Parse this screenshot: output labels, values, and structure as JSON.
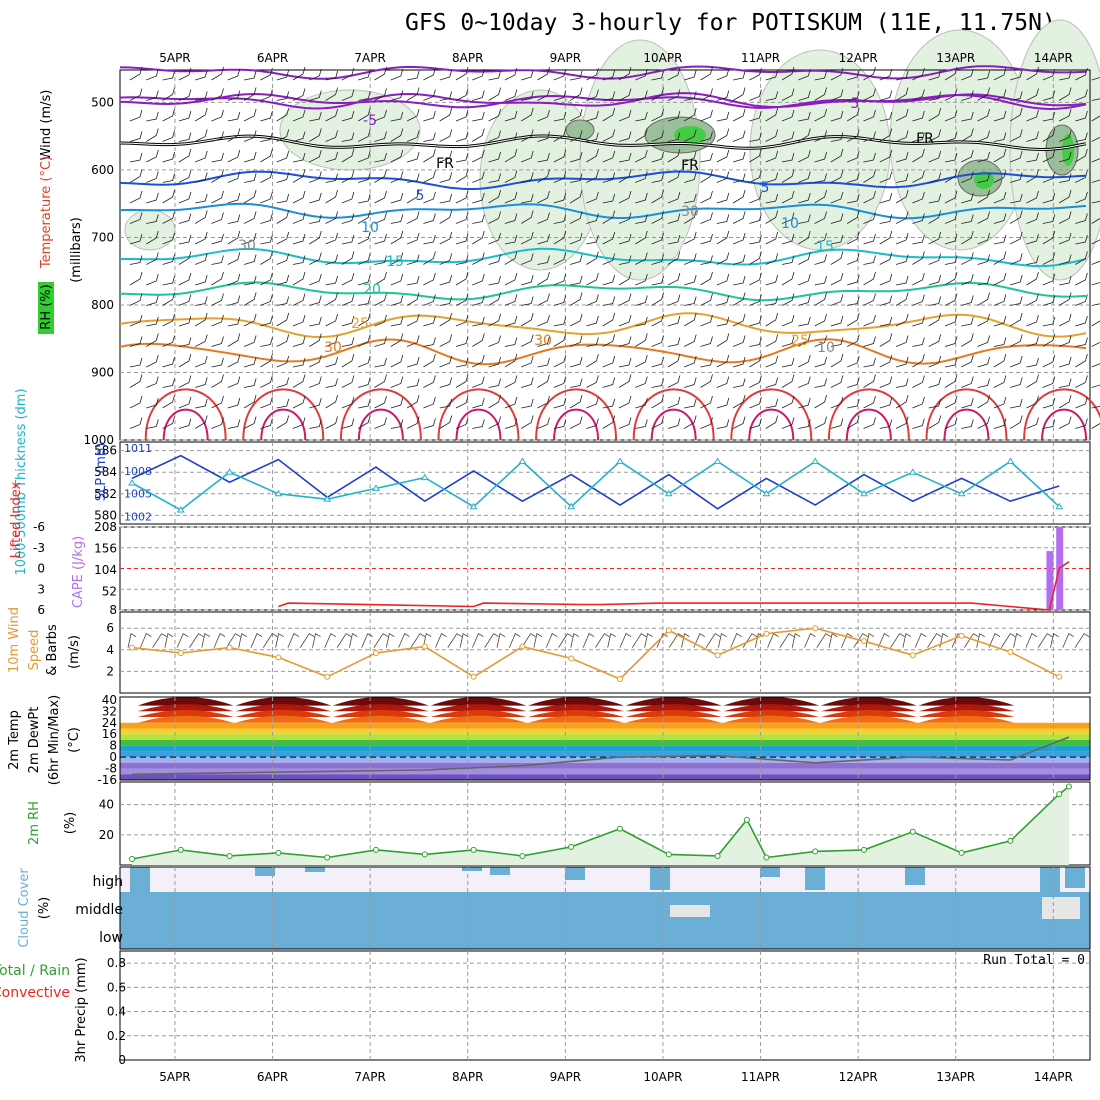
{
  "title": "GFS 0~10day 3-hourly for POTISKUM (11E, 11.75N)",
  "days": [
    "5APR",
    "6APR",
    "7APR",
    "8APR",
    "9APR",
    "10APR",
    "11APR",
    "12APR",
    "13APR",
    "14APR"
  ],
  "colors": {
    "grid": "#9a9a9a",
    "slp": "#1c3fcc",
    "thick": "#22b3c8",
    "cape": "#b36ef0",
    "li": "#ee2222",
    "wind": "#e49a30",
    "rh": "#2fa02f",
    "cloud": "#6baed6",
    "precip_green": "#2fa02f"
  },
  "panels": {
    "upper": {
      "labels": {
        "wind": "Wind (m/s)",
        "temp": "Temperature (°C)",
        "rh": "RH (%)",
        "mb": "(millibars)"
      },
      "yticks": [
        500,
        600,
        700,
        800,
        900,
        1000
      ],
      "contour_labels": {
        "purple": "-5",
        "purple2": "5",
        "fr": "FR",
        "blue": "5",
        "c10": "10",
        "c15": "15",
        "c20": "20",
        "c25": "25",
        "c30": "30",
        "rh30": "30",
        "rh10": "10"
      }
    },
    "slp": {
      "label_thick": "1000-500mb Thickness (dm)",
      "label_slp": "SLP (mb)",
      "left_ticks": [
        "586",
        "584",
        "582",
        "580"
      ],
      "right_ticks": [
        "1011",
        "1008",
        "1005",
        "1002"
      ]
    },
    "cape": {
      "label_li": "Lifted Index",
      "label_cape": "CAPE (J/kg)",
      "left_ticks": [
        "-6",
        "-3",
        "0",
        "3",
        "6"
      ],
      "right_ticks": [
        "208",
        "156",
        "104",
        "52",
        "8"
      ]
    },
    "wind10": {
      "label1": "10m Wind",
      "label2": "Speed",
      "label3": "& Barbs",
      "unit": "(m/s)",
      "yticks": [
        "6",
        "4",
        "2"
      ]
    },
    "temp2m": {
      "label1": "2m Temp",
      "label2": "2m DewPt",
      "label3": "(6hr Min/Max)",
      "unit": "(°C)",
      "yticks": [
        "40",
        "32",
        "24",
        "16",
        "8",
        "0",
        "-8",
        "-16"
      ]
    },
    "rh2m": {
      "label": "2m RH",
      "unit": "(%)",
      "yticks": [
        "40",
        "20"
      ]
    },
    "cloud": {
      "label": "Cloud Cover",
      "unit": "(%)",
      "levels": [
        "high",
        "middle",
        "low"
      ]
    },
    "precip": {
      "label1": "3hr Precip (mm)",
      "label2": "Total / Rain",
      "label3": "Convective",
      "yticks": [
        "0.8",
        "0.6",
        "0.4",
        "0.2",
        "0"
      ],
      "run_total": "Run Total = 0"
    }
  },
  "chart_data": {
    "type": "line",
    "x_unit": "days from 00Z 5APR",
    "slp": {
      "x": [
        0,
        0.5,
        1,
        1.5,
        2,
        2.5,
        3,
        3.5,
        4,
        4.5,
        5,
        5.5,
        6,
        6.5,
        7,
        7.5,
        8,
        8.5,
        9,
        9.5
      ],
      "values": [
        1007,
        1010,
        1006.5,
        1009.5,
        1004.5,
        1008.5,
        1004,
        1008,
        1004,
        1007.5,
        1003.5,
        1007.5,
        1003,
        1007,
        1003.5,
        1007.5,
        1004,
        1007,
        1004,
        1006
      ]
    },
    "thickness": {
      "x": [
        0,
        0.5,
        1,
        1.5,
        2,
        2.5,
        3,
        3.5,
        4,
        4.5,
        5,
        5.5,
        6,
        6.5,
        7,
        7.5,
        8,
        8.5,
        9,
        9.5
      ],
      "values": [
        583,
        580.5,
        584,
        582,
        581.5,
        582.5,
        583.5,
        580.8,
        585,
        580.8,
        585,
        582,
        585,
        582,
        585,
        582,
        584,
        582,
        585,
        580.8
      ]
    },
    "lifted_index": {
      "x": [
        1.5,
        1.6,
        3.5,
        3.6,
        4.6,
        4.7,
        4.8,
        5.4,
        5.6,
        8.6,
        9.4,
        9.5,
        9.6
      ],
      "values": [
        5.5,
        5,
        5.5,
        5,
        5.2,
        5.2,
        5.2,
        5,
        5,
        5,
        6,
        0,
        -1
      ]
    },
    "cape": {
      "x": [
        9.4,
        9.5
      ],
      "values": [
        150,
        208
      ]
    },
    "wind10m_speed": {
      "x": [
        0,
        0.5,
        1,
        1.5,
        2,
        2.5,
        3,
        3.5,
        4,
        4.5,
        5,
        5.5,
        6,
        6.5,
        7,
        7.5,
        8,
        8.5,
        9,
        9.5
      ],
      "values": [
        4.2,
        3.7,
        4.2,
        3.3,
        1.5,
        3.7,
        4.3,
        1.5,
        4.3,
        3.2,
        1.3,
        5.8,
        3.5,
        5.5,
        6,
        4.8,
        3.5,
        5.3,
        3.8,
        1.5
      ]
    },
    "temp2m_max": [
      39,
      39,
      39,
      39,
      39,
      39,
      39,
      38,
      38
    ],
    "temp2m_min": [
      24,
      24,
      24,
      24,
      24,
      24,
      24,
      24,
      24
    ],
    "dewpt_2m": {
      "x": [
        0,
        1,
        2,
        3,
        4,
        5,
        6,
        7,
        8,
        9,
        9.6
      ],
      "values": [
        -12,
        -11,
        -10,
        -9,
        -6,
        0,
        1,
        -4,
        0,
        -2,
        14
      ]
    },
    "rh2m": {
      "x": [
        0,
        0.5,
        1,
        1.5,
        2,
        2.5,
        3,
        3.5,
        4,
        4.5,
        5,
        5.5,
        6,
        6.3,
        6.5,
        7,
        7.5,
        8,
        8.5,
        9,
        9.5,
        9.6
      ],
      "values": [
        4,
        10,
        6,
        8,
        5,
        10,
        7,
        10,
        6,
        12,
        24,
        7,
        6,
        30,
        5,
        9,
        10,
        22,
        8,
        16,
        47,
        52
      ]
    },
    "precip_total": 0,
    "ylim_slp": [
      1002,
      1011
    ],
    "ylim_thickness": [
      580,
      586
    ],
    "ylim_cape": [
      8,
      208
    ],
    "ylim_li": [
      6,
      -6
    ],
    "ylim_wind": [
      0,
      7.5
    ],
    "ylim_temp": [
      -16,
      42
    ],
    "ylim_rh": [
      0,
      50
    ],
    "ylim_precip": [
      0,
      0.9
    ]
  }
}
